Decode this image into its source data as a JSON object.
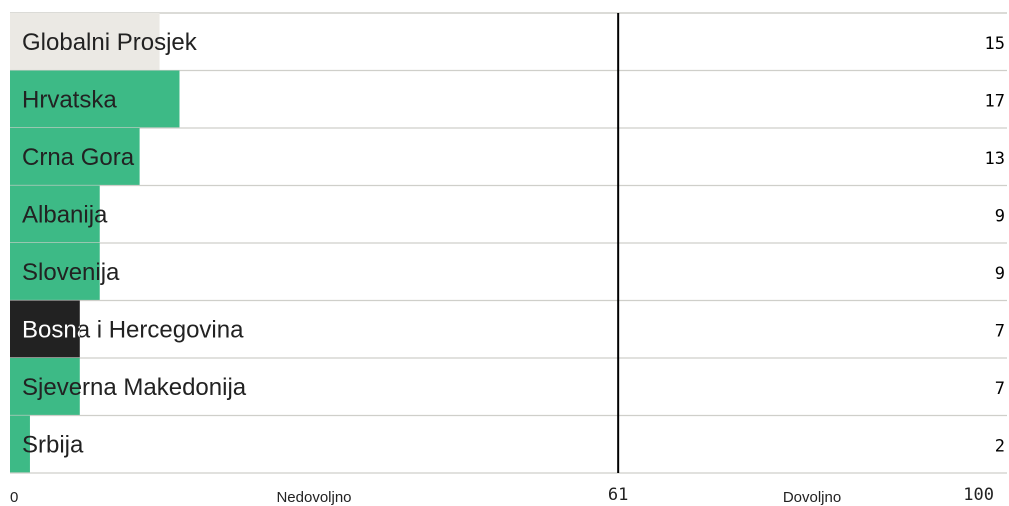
{
  "colors": {
    "average": "#ebe9e4",
    "default_bar": "#3dba86",
    "highlight_bar": "#222222",
    "divider": "#cfcfca",
    "threshold_line": "#000000"
  },
  "chart_data": {
    "type": "bar",
    "orientation": "horizontal",
    "categories": [
      "Globalni Prosjek",
      "Hrvatska",
      "Crna Gora",
      "Albanija",
      "Slovenija",
      "Bosna i Hercegovina",
      "Sjeverna Makedonija",
      "Srbija"
    ],
    "values": [
      15,
      17,
      13,
      9,
      9,
      7,
      7,
      2
    ],
    "value_labels": [
      "15",
      "17",
      "13",
      "9",
      "9",
      "7",
      "7",
      "2"
    ],
    "highlight": "Bosna i Hercegovina",
    "average_category": "Globalni Prosjek",
    "xlim": [
      0,
      100
    ],
    "threshold": 61,
    "axis": {
      "min_label": "0",
      "max_label": "100",
      "threshold_label": "61",
      "below_label": "Nedovoljno",
      "above_label": "Dovoljno"
    }
  }
}
